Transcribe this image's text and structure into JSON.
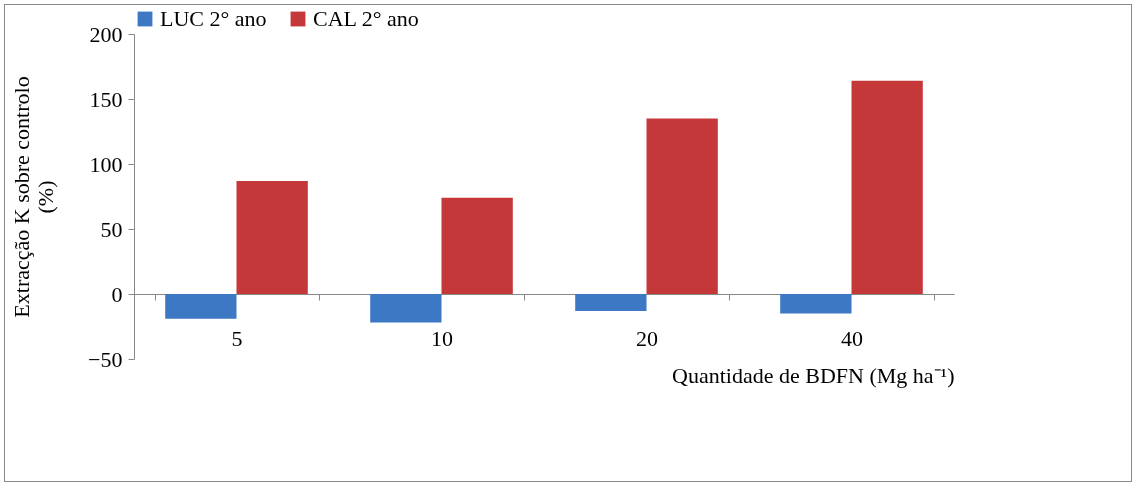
{
  "chart_data": {
    "type": "bar",
    "categories": [
      "5",
      "10",
      "20",
      "40"
    ],
    "series": [
      {
        "name": "LUC 2° ano",
        "color": "#3c78c4",
        "values": [
          -19,
          -22,
          -13,
          -15
        ]
      },
      {
        "name": "CAL 2° ano",
        "color": "#c4383a",
        "values": [
          87,
          74,
          135,
          164
        ]
      }
    ],
    "ylim": [
      -50,
      200
    ],
    "yticks": [
      -50,
      0,
      50,
      100,
      150,
      200
    ],
    "xlabel": "Quantidade de BDFN (Mg ha⁻¹)",
    "ylabel": "Extracção K sobre  controlo\n(%)",
    "grid": false,
    "legend": "top"
  }
}
